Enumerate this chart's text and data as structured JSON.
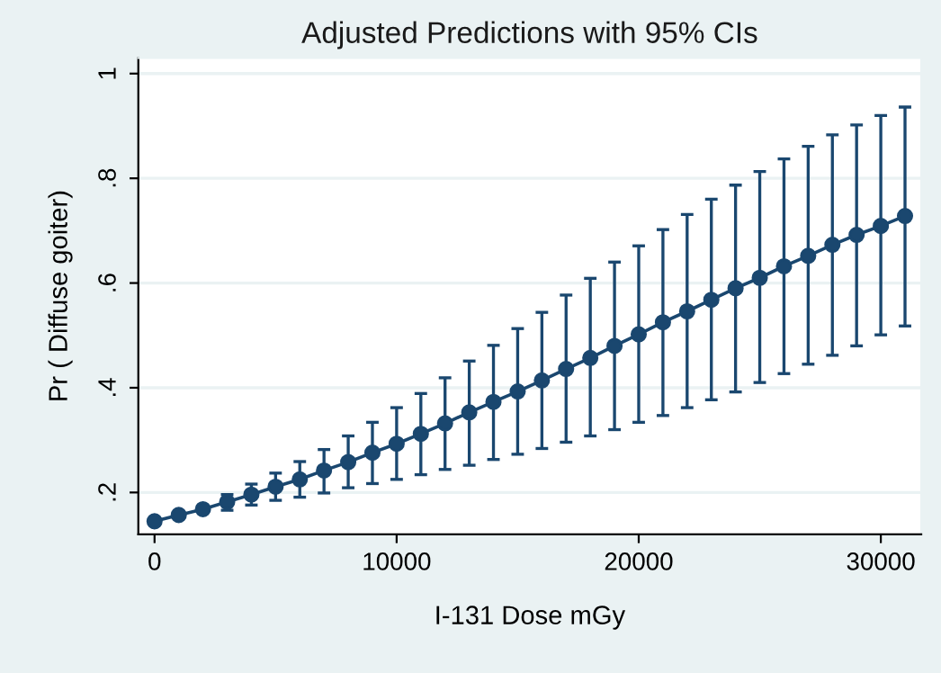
{
  "chart_data": {
    "type": "line",
    "title": "Adjusted Predictions with 95% CIs",
    "xlabel": "I-131 Dose mGy",
    "ylabel": "Pr ( Diffuse goiter)",
    "x": [
      0,
      1000,
      2000,
      3000,
      4000,
      5000,
      6000,
      7000,
      8000,
      9000,
      10000,
      11000,
      12000,
      13000,
      14000,
      15000,
      16000,
      17000,
      18000,
      19000,
      20000,
      21000,
      22000,
      23000,
      24000,
      25000,
      26000,
      27000,
      28000,
      29000,
      30000,
      31000
    ],
    "series": [
      {
        "color": "#1a476f",
        "values": [
          0.145,
          0.157,
          0.168,
          0.182,
          0.196,
          0.211,
          0.225,
          0.242,
          0.258,
          0.276,
          0.293,
          0.312,
          0.332,
          0.353,
          0.373,
          0.393,
          0.414,
          0.436,
          0.457,
          0.48,
          0.502,
          0.525,
          0.546,
          0.568,
          0.59,
          0.61,
          0.632,
          0.652,
          0.673,
          0.692,
          0.709,
          0.728
        ],
        "errors": [
          null,
          null,
          null,
          [
            0.166,
            0.196
          ],
          [
            0.176,
            0.216
          ],
          [
            0.185,
            0.237
          ],
          [
            0.191,
            0.259
          ],
          [
            0.199,
            0.282
          ],
          [
            0.209,
            0.308
          ],
          [
            0.217,
            0.334
          ],
          [
            0.225,
            0.362
          ],
          [
            0.234,
            0.389
          ],
          [
            0.244,
            0.419
          ],
          [
            0.252,
            0.451
          ],
          [
            0.263,
            0.481
          ],
          [
            0.273,
            0.513
          ],
          [
            0.284,
            0.544
          ],
          [
            0.296,
            0.577
          ],
          [
            0.308,
            0.609
          ],
          [
            0.32,
            0.64
          ],
          [
            0.334,
            0.671
          ],
          [
            0.347,
            0.702
          ],
          [
            0.362,
            0.731
          ],
          [
            0.377,
            0.76
          ],
          [
            0.392,
            0.787
          ],
          [
            0.41,
            0.813
          ],
          [
            0.427,
            0.837
          ],
          [
            0.445,
            0.861
          ],
          [
            0.462,
            0.883
          ],
          [
            0.48,
            0.902
          ],
          [
            0.501,
            0.92
          ],
          [
            0.518,
            0.936
          ]
        ]
      }
    ],
    "xlim": [
      -670,
      31670
    ],
    "ylim": [
      0.12,
      1.03
    ],
    "xticks": [
      0,
      10000,
      20000,
      30000
    ],
    "yticks": [
      {
        "value": 0.2,
        "label": ".2"
      },
      {
        "value": 0.4,
        "label": ".4"
      },
      {
        "value": 0.6,
        "label": ".6"
      },
      {
        "value": 0.8,
        "label": ".8"
      },
      {
        "value": 1,
        "label": "1"
      }
    ],
    "grid": "y",
    "marker": "circle",
    "line_style": "solid",
    "legend": false
  }
}
